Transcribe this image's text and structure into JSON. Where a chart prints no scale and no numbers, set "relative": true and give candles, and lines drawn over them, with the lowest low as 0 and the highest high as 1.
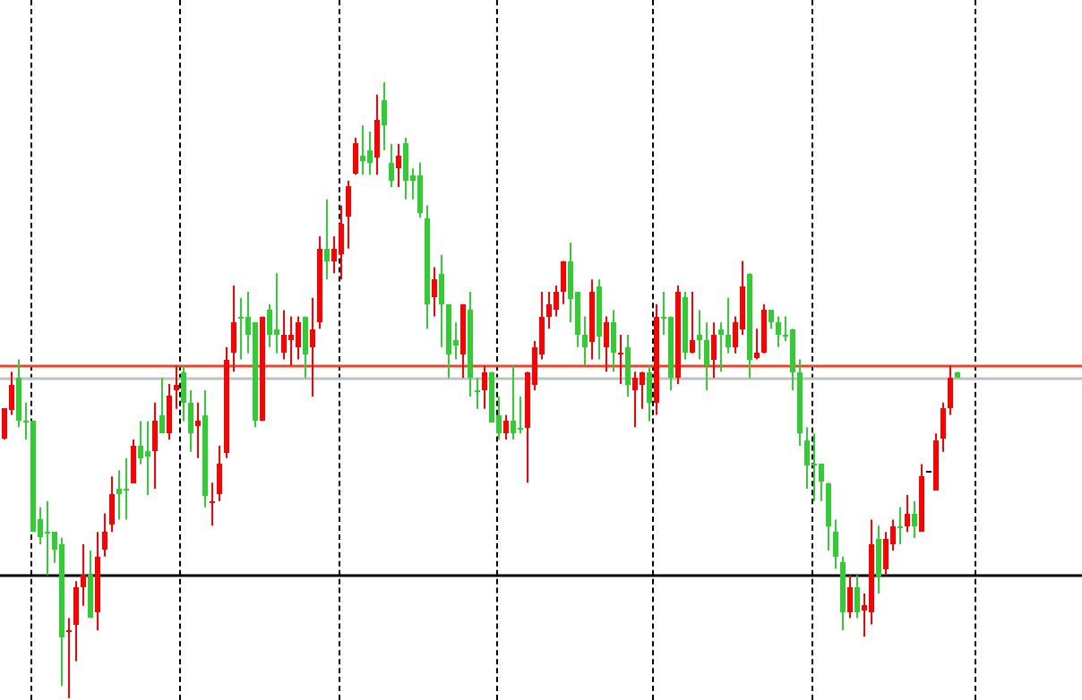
{
  "chart_data": {
    "type": "candlestick",
    "relative": true,
    "legend": false,
    "ohlc": [
      [
        0.42,
        0.47,
        0.42,
        0.47
      ],
      [
        0.47,
        0.53,
        0.46,
        0.51
      ],
      [
        0.52,
        0.55,
        0.44,
        0.45
      ],
      [
        0.45,
        0.48,
        0.42,
        0.45
      ],
      [
        0.45,
        0.45,
        0.27,
        0.27
      ],
      [
        0.29,
        0.31,
        0.25,
        0.26
      ],
      [
        0.27,
        0.32,
        0.2,
        0.27
      ],
      [
        0.27,
        0.27,
        0.22,
        0.24
      ],
      [
        0.25,
        0.26,
        0.02,
        0.1
      ],
      [
        0.11,
        0.13,
        0,
        0.11
      ],
      [
        0.12,
        0.19,
        0.06,
        0.18
      ],
      [
        0.18,
        0.25,
        0.15,
        0.2
      ],
      [
        0.2,
        0.24,
        0.13,
        0.13
      ],
      [
        0.14,
        0.27,
        0.11,
        0.23
      ],
      [
        0.24,
        0.3,
        0.23,
        0.27
      ],
      [
        0.28,
        0.36,
        0.27,
        0.33
      ],
      [
        0.34,
        0.37,
        0.29,
        0.33
      ],
      [
        0.34,
        0.39,
        0.29,
        0.34
      ],
      [
        0.35,
        0.42,
        0.35,
        0.41
      ],
      [
        0.41,
        0.45,
        0.38,
        0.39
      ],
      [
        0.4,
        0.45,
        0.33,
        0.39
      ],
      [
        0.4,
        0.48,
        0.34,
        0.45
      ],
      [
        0.46,
        0.52,
        0.43,
        0.43
      ],
      [
        0.43,
        0.51,
        0.42,
        0.49
      ],
      [
        0.5,
        0.54,
        0.47,
        0.51
      ],
      [
        0.53,
        0.54,
        0.45,
        0.48
      ],
      [
        0.48,
        0.5,
        0.4,
        0.43
      ],
      [
        0.44,
        0.48,
        0.39,
        0.45
      ],
      [
        0.46,
        0.5,
        0.31,
        0.33
      ],
      [
        0.32,
        0.35,
        0.28,
        0.32
      ],
      [
        0.33,
        0.41,
        0.32,
        0.38
      ],
      [
        0.4,
        0.57,
        0.39,
        0.55
      ],
      [
        0.56,
        0.67,
        0.53,
        0.61
      ],
      [
        0.62,
        0.65,
        0.55,
        0.62
      ],
      [
        0.62,
        0.66,
        0.56,
        0.59
      ],
      [
        0.61,
        0.61,
        0.44,
        0.45
      ],
      [
        0.45,
        0.62,
        0.45,
        0.62
      ],
      [
        0.63,
        0.64,
        0.57,
        0.59
      ],
      [
        0.6,
        0.69,
        0.56,
        0.59
      ],
      [
        0.56,
        0.63,
        0.55,
        0.59
      ],
      [
        0.58,
        0.62,
        0.54,
        0.59
      ],
      [
        0.57,
        0.62,
        0.55,
        0.61
      ],
      [
        0.62,
        0.62,
        0.52,
        0.56
      ],
      [
        0.57,
        0.65,
        0.49,
        0.6
      ],
      [
        0.61,
        0.75,
        0.6,
        0.73
      ],
      [
        0.73,
        0.81,
        0.68,
        0.71
      ],
      [
        0.71,
        0.75,
        0.69,
        0.73
      ],
      [
        0.72,
        0.8,
        0.68,
        0.77
      ],
      [
        0.78,
        0.84,
        0.73,
        0.83
      ],
      [
        0.85,
        0.91,
        0.85,
        0.9
      ],
      [
        0.88,
        0.93,
        0.85,
        0.87
      ],
      [
        0.89,
        0.92,
        0.85,
        0.87
      ],
      [
        0.88,
        0.98,
        0.85,
        0.94
      ],
      [
        0.97,
        1,
        0.89,
        0.93
      ],
      [
        0.87,
        0.9,
        0.83,
        0.84
      ],
      [
        0.86,
        0.9,
        0.83,
        0.88
      ],
      [
        0.9,
        0.91,
        0.81,
        0.84
      ],
      [
        0.85,
        0.86,
        0.81,
        0.84
      ],
      [
        0.85,
        0.87,
        0.78,
        0.79
      ],
      [
        0.78,
        0.8,
        0.6,
        0.64
      ],
      [
        0.65,
        0.7,
        0.62,
        0.68
      ],
      [
        0.69,
        0.72,
        0.57,
        0.64
      ],
      [
        0.64,
        0.64,
        0.52,
        0.56
      ],
      [
        0.58,
        0.61,
        0.55,
        0.57
      ],
      [
        0.56,
        0.64,
        0.52,
        0.64
      ],
      [
        0.63,
        0.66,
        0.49,
        0.52
      ],
      [
        0.5,
        0.52,
        0.47,
        0.5
      ],
      [
        0.5,
        0.54,
        0.47,
        0.53
      ],
      [
        0.53,
        0.53,
        0.45,
        0.45
      ],
      [
        0.46,
        0.49,
        0.42,
        0.43
      ],
      [
        0.43,
        0.46,
        0.42,
        0.45
      ],
      [
        0.45,
        0.54,
        0.42,
        0.43
      ],
      [
        0.44,
        0.49,
        0.43,
        0.44
      ],
      [
        0.44,
        0.53,
        0.35,
        0.53
      ],
      [
        0.51,
        0.58,
        0.5,
        0.57
      ],
      [
        0.56,
        0.66,
        0.55,
        0.62
      ],
      [
        0.62,
        0.66,
        0.6,
        0.64
      ],
      [
        0.63,
        0.67,
        0.62,
        0.66
      ],
      [
        0.66,
        0.71,
        0.64,
        0.71
      ],
      [
        0.71,
        0.74,
        0.61,
        0.65
      ],
      [
        0.66,
        0.66,
        0.57,
        0.59
      ],
      [
        0.59,
        0.62,
        0.54,
        0.57
      ],
      [
        0.58,
        0.68,
        0.55,
        0.66
      ],
      [
        0.67,
        0.68,
        0.55,
        0.59
      ],
      [
        0.57,
        0.62,
        0.53,
        0.61
      ],
      [
        0.61,
        0.63,
        0.53,
        0.56
      ],
      [
        0.56,
        0.59,
        0.51,
        0.56
      ],
      [
        0.57,
        0.59,
        0.49,
        0.51
      ],
      [
        0.5,
        0.53,
        0.44,
        0.52
      ],
      [
        0.51,
        0.53,
        0.47,
        0.53
      ],
      [
        0.53,
        0.54,
        0.45,
        0.48
      ],
      [
        0.48,
        0.64,
        0.46,
        0.62
      ],
      [
        0.62,
        0.66,
        0.59,
        0.62
      ],
      [
        0.62,
        0.62,
        0.5,
        0.52
      ],
      [
        0.52,
        0.67,
        0.51,
        0.66
      ],
      [
        0.65,
        0.66,
        0.55,
        0.56
      ],
      [
        0.56,
        0.66,
        0.56,
        0.58
      ],
      [
        0.59,
        0.63,
        0.55,
        0.58
      ],
      [
        0.58,
        0.61,
        0.5,
        0.54
      ],
      [
        0.55,
        0.61,
        0.52,
        0.59
      ],
      [
        0.6,
        0.61,
        0.53,
        0.59
      ],
      [
        0.59,
        0.65,
        0.56,
        0.57
      ],
      [
        0.57,
        0.62,
        0.56,
        0.61
      ],
      [
        0.6,
        0.71,
        0.59,
        0.67
      ],
      [
        0.69,
        0.69,
        0.52,
        0.55
      ],
      [
        0.55,
        0.6,
        0.55,
        0.56
      ],
      [
        0.56,
        0.64,
        0.56,
        0.63
      ],
      [
        0.63,
        0.63,
        0.6,
        0.61
      ],
      [
        0.61,
        0.62,
        0.57,
        0.59
      ],
      [
        0.59,
        0.62,
        0.58,
        0.59
      ],
      [
        0.6,
        0.6,
        0.5,
        0.53
      ],
      [
        0.53,
        0.55,
        0.41,
        0.43
      ],
      [
        0.42,
        0.44,
        0.34,
        0.38
      ],
      [
        0.38,
        0.43,
        0.32,
        0.38
      ],
      [
        0.38,
        0.38,
        0.32,
        0.35
      ],
      [
        0.35,
        0.35,
        0.24,
        0.28
      ],
      [
        0.27,
        0.29,
        0.21,
        0.23
      ],
      [
        0.22,
        0.23,
        0.11,
        0.14
      ],
      [
        0.14,
        0.2,
        0.13,
        0.18
      ],
      [
        0.18,
        0.2,
        0.13,
        0.14
      ],
      [
        0.14,
        0.17,
        0.1,
        0.15
      ],
      [
        0.14,
        0.29,
        0.12,
        0.25
      ],
      [
        0.26,
        0.28,
        0.17,
        0.2
      ],
      [
        0.21,
        0.27,
        0.2,
        0.26
      ],
      [
        0.25,
        0.29,
        0.24,
        0.28
      ],
      [
        0.28,
        0.31,
        0.25,
        0.28
      ],
      [
        0.28,
        0.33,
        0.27,
        0.3
      ],
      [
        0.3,
        0.32,
        0.26,
        0.28
      ],
      [
        0.27,
        0.38,
        0.27,
        0.36
      ],
      [
        0.37,
        0.37,
        0.37,
        0.37
      ],
      [
        0.34,
        0.43,
        0.34,
        0.42
      ],
      [
        0.42,
        0.48,
        0.4,
        0.47
      ],
      [
        0.47,
        0.54,
        0.46,
        0.52
      ],
      [
        0.53,
        0.53,
        0.52,
        0.52
      ]
    ],
    "colors": [
      "#ff0000",
      "#ff0000",
      "#32cd32",
      "#32cd32",
      "#32cd32",
      "#32cd32",
      "#32cd32",
      "#32cd32",
      "#32cd32",
      "#ff0000",
      "#ff0000",
      "#ff0000",
      "#32cd32",
      "#ff0000",
      "#ff0000",
      "#ff0000",
      "#32cd32",
      "#32cd32",
      "#ff0000",
      "#32cd32",
      "#32cd32",
      "#ff0000",
      "#32cd32",
      "#ff0000",
      "#ff0000",
      "#32cd32",
      "#32cd32",
      "#ff0000",
      "#32cd32",
      "#ff0000",
      "#ff0000",
      "#ff0000",
      "#ff0000",
      "#32cd32",
      "#32cd32",
      "#32cd32",
      "#ff0000",
      "#32cd32",
      "#32cd32",
      "#ff0000",
      "#ff0000",
      "#ff0000",
      "#32cd32",
      "#ff0000",
      "#ff0000",
      "#32cd32",
      "#ff0000",
      "#ff0000",
      "#ff0000",
      "#ff0000",
      "#32cd32",
      "#32cd32",
      "#ff0000",
      "#32cd32",
      "#32cd32",
      "#ff0000",
      "#32cd32",
      "#32cd32",
      "#32cd32",
      "#32cd32",
      "#ff0000",
      "#32cd32",
      "#32cd32",
      "#32cd32",
      "#ff0000",
      "#32cd32",
      "#32cd32",
      "#ff0000",
      "#32cd32",
      "#32cd32",
      "#ff0000",
      "#32cd32",
      "#32cd32",
      "#ff0000",
      "#ff0000",
      "#ff0000",
      "#ff0000",
      "#ff0000",
      "#ff0000",
      "#32cd32",
      "#32cd32",
      "#32cd32",
      "#ff0000",
      "#32cd32",
      "#ff0000",
      "#32cd32",
      "#ff0000",
      "#32cd32",
      "#ff0000",
      "#ff0000",
      "#32cd32",
      "#ff0000",
      "#32cd32",
      "#32cd32",
      "#ff0000",
      "#32cd32",
      "#ff0000",
      "#32cd32",
      "#32cd32",
      "#ff0000",
      "#32cd32",
      "#32cd32",
      "#ff0000",
      "#ff0000",
      "#32cd32",
      "#ff0000",
      "#ff0000",
      "#32cd32",
      "#32cd32",
      "#32cd32",
      "#32cd32",
      "#32cd32",
      "#32cd32",
      "#32cd32",
      "#32cd32",
      "#32cd32",
      "#32cd32",
      "#32cd32",
      "#ff0000",
      "#32cd32",
      "#ff0000",
      "#ff0000",
      "#32cd32",
      "#ff0000",
      "#ff0000",
      "#32cd32",
      "#ff0000",
      "#32cd32",
      "#ff0000",
      "#000000",
      "#ff0000",
      "#ff0000",
      "#ff0000",
      "#32cd32"
    ],
    "ref_lines": [
      {
        "axis": "y",
        "value": 0.54,
        "color": "#e8452c"
      },
      {
        "axis": "y",
        "value": 0.52,
        "color": "#c0c0c0"
      },
      {
        "axis": "y",
        "value": 0.2,
        "color": "#000000"
      }
    ]
  }
}
